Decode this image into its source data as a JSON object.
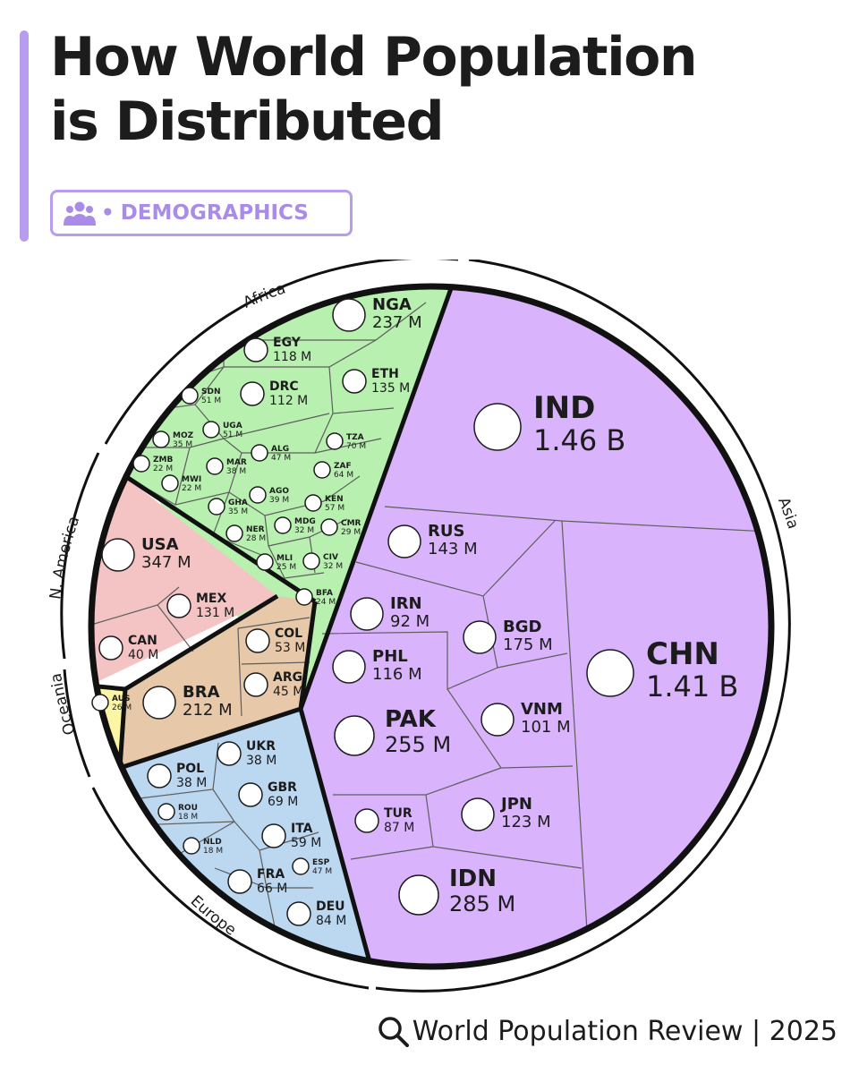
{
  "header": {
    "title_line1": "How World Population",
    "title_line2": "is Distributed",
    "tag_label": "DEMOGRAPHICS",
    "tag_icon": "people-icon",
    "accent_color": "#b79cf0"
  },
  "footer": {
    "source": "World Population Review | 2025",
    "icon": "search-icon"
  },
  "chart_data": {
    "type": "voronoi-pie",
    "title": "How World Population is Distributed",
    "groups": [
      {
        "name": "Asia",
        "color": "#d9b3fb",
        "countries": [
          {
            "code": "IND",
            "value": "1.46 B",
            "population_millions": 1460
          },
          {
            "code": "CHN",
            "value": "1.41 B",
            "population_millions": 1410
          },
          {
            "code": "IDN",
            "value": "285 M",
            "population_millions": 285
          },
          {
            "code": "PAK",
            "value": "255 M",
            "population_millions": 255
          },
          {
            "code": "BGD",
            "value": "175 M",
            "population_millions": 175
          },
          {
            "code": "RUS",
            "value": "143 M",
            "population_millions": 143
          },
          {
            "code": "JPN",
            "value": "123 M",
            "population_millions": 123
          },
          {
            "code": "PHL",
            "value": "116 M",
            "population_millions": 116
          },
          {
            "code": "VNM",
            "value": "101 M",
            "population_millions": 101
          },
          {
            "code": "IRN",
            "value": "92 M",
            "population_millions": 92
          },
          {
            "code": "TUR",
            "value": "87 M",
            "population_millions": 87
          }
        ]
      },
      {
        "name": "Africa",
        "color": "#b8f0b0",
        "countries": [
          {
            "code": "NGA",
            "value": "237 M",
            "population_millions": 237
          },
          {
            "code": "ETH",
            "value": "135 M",
            "population_millions": 135
          },
          {
            "code": "EGY",
            "value": "118 M",
            "population_millions": 118
          },
          {
            "code": "DRC",
            "value": "112 M",
            "population_millions": 112
          },
          {
            "code": "TZA",
            "value": "70 M",
            "population_millions": 70
          },
          {
            "code": "ZAF",
            "value": "64 M",
            "population_millions": 64
          },
          {
            "code": "KEN",
            "value": "57 M",
            "population_millions": 57
          },
          {
            "code": "SDN",
            "value": "51 M",
            "population_millions": 51
          },
          {
            "code": "UGA",
            "value": "51 M",
            "population_millions": 51
          },
          {
            "code": "ALG",
            "value": "47 M",
            "population_millions": 47
          },
          {
            "code": "AGO",
            "value": "39 M",
            "population_millions": 39
          },
          {
            "code": "MAR",
            "value": "38 M",
            "population_millions": 38
          },
          {
            "code": "GHA",
            "value": "35 M",
            "population_millions": 35
          },
          {
            "code": "MOZ",
            "value": "35 M",
            "population_millions": 35
          },
          {
            "code": "MDG",
            "value": "32 M",
            "population_millions": 32
          },
          {
            "code": "CIV",
            "value": "32 M",
            "population_millions": 32
          },
          {
            "code": "CMR",
            "value": "29 M",
            "population_millions": 29
          },
          {
            "code": "NER",
            "value": "28 M",
            "population_millions": 28
          },
          {
            "code": "MLI",
            "value": "25 M",
            "population_millions": 25
          },
          {
            "code": "BFA",
            "value": "24 M",
            "population_millions": 24
          },
          {
            "code": "MWI",
            "value": "22 M",
            "population_millions": 22
          },
          {
            "code": "ZMB",
            "value": "22 M",
            "population_millions": 22
          }
        ]
      },
      {
        "name": "N. America",
        "color": "#f4c3c3",
        "countries": [
          {
            "code": "USA",
            "value": "347 M",
            "population_millions": 347
          },
          {
            "code": "MEX",
            "value": "131 M",
            "population_millions": 131
          },
          {
            "code": "CAN",
            "value": "40 M",
            "population_millions": 40
          }
        ]
      },
      {
        "name": "",
        "color": "#e7c9aa",
        "countries": [
          {
            "code": "BRA",
            "value": "212 M",
            "population_millions": 212
          },
          {
            "code": "COL",
            "value": "53 M",
            "population_millions": 53
          },
          {
            "code": "ARG",
            "value": "45 M",
            "population_millions": 45
          }
        ]
      },
      {
        "name": "Oceania",
        "color": "#fbf6a6",
        "countries": [
          {
            "code": "AUS",
            "value": "26 M",
            "population_millions": 26
          }
        ]
      },
      {
        "name": "Europe",
        "color": "#bcd8f1",
        "countries": [
          {
            "code": "DEU",
            "value": "84 M",
            "population_millions": 84
          },
          {
            "code": "GBR",
            "value": "69 M",
            "population_millions": 69
          },
          {
            "code": "FRA",
            "value": "66 M",
            "population_millions": 66
          },
          {
            "code": "ITA",
            "value": "59 M",
            "population_millions": 59
          },
          {
            "code": "ESP",
            "value": "47 M",
            "population_millions": 47
          },
          {
            "code": "POL",
            "value": "38 M",
            "population_millions": 38
          },
          {
            "code": "UKR",
            "value": "38 M",
            "population_millions": 38
          },
          {
            "code": "ROU",
            "value": "18 M",
            "population_millions": 18
          },
          {
            "code": "NLD",
            "value": "18 M",
            "population_millions": 18
          }
        ]
      }
    ],
    "arc_labels": [
      "Africa",
      "Asia",
      "N. America",
      "Oceania",
      "Europe"
    ]
  }
}
